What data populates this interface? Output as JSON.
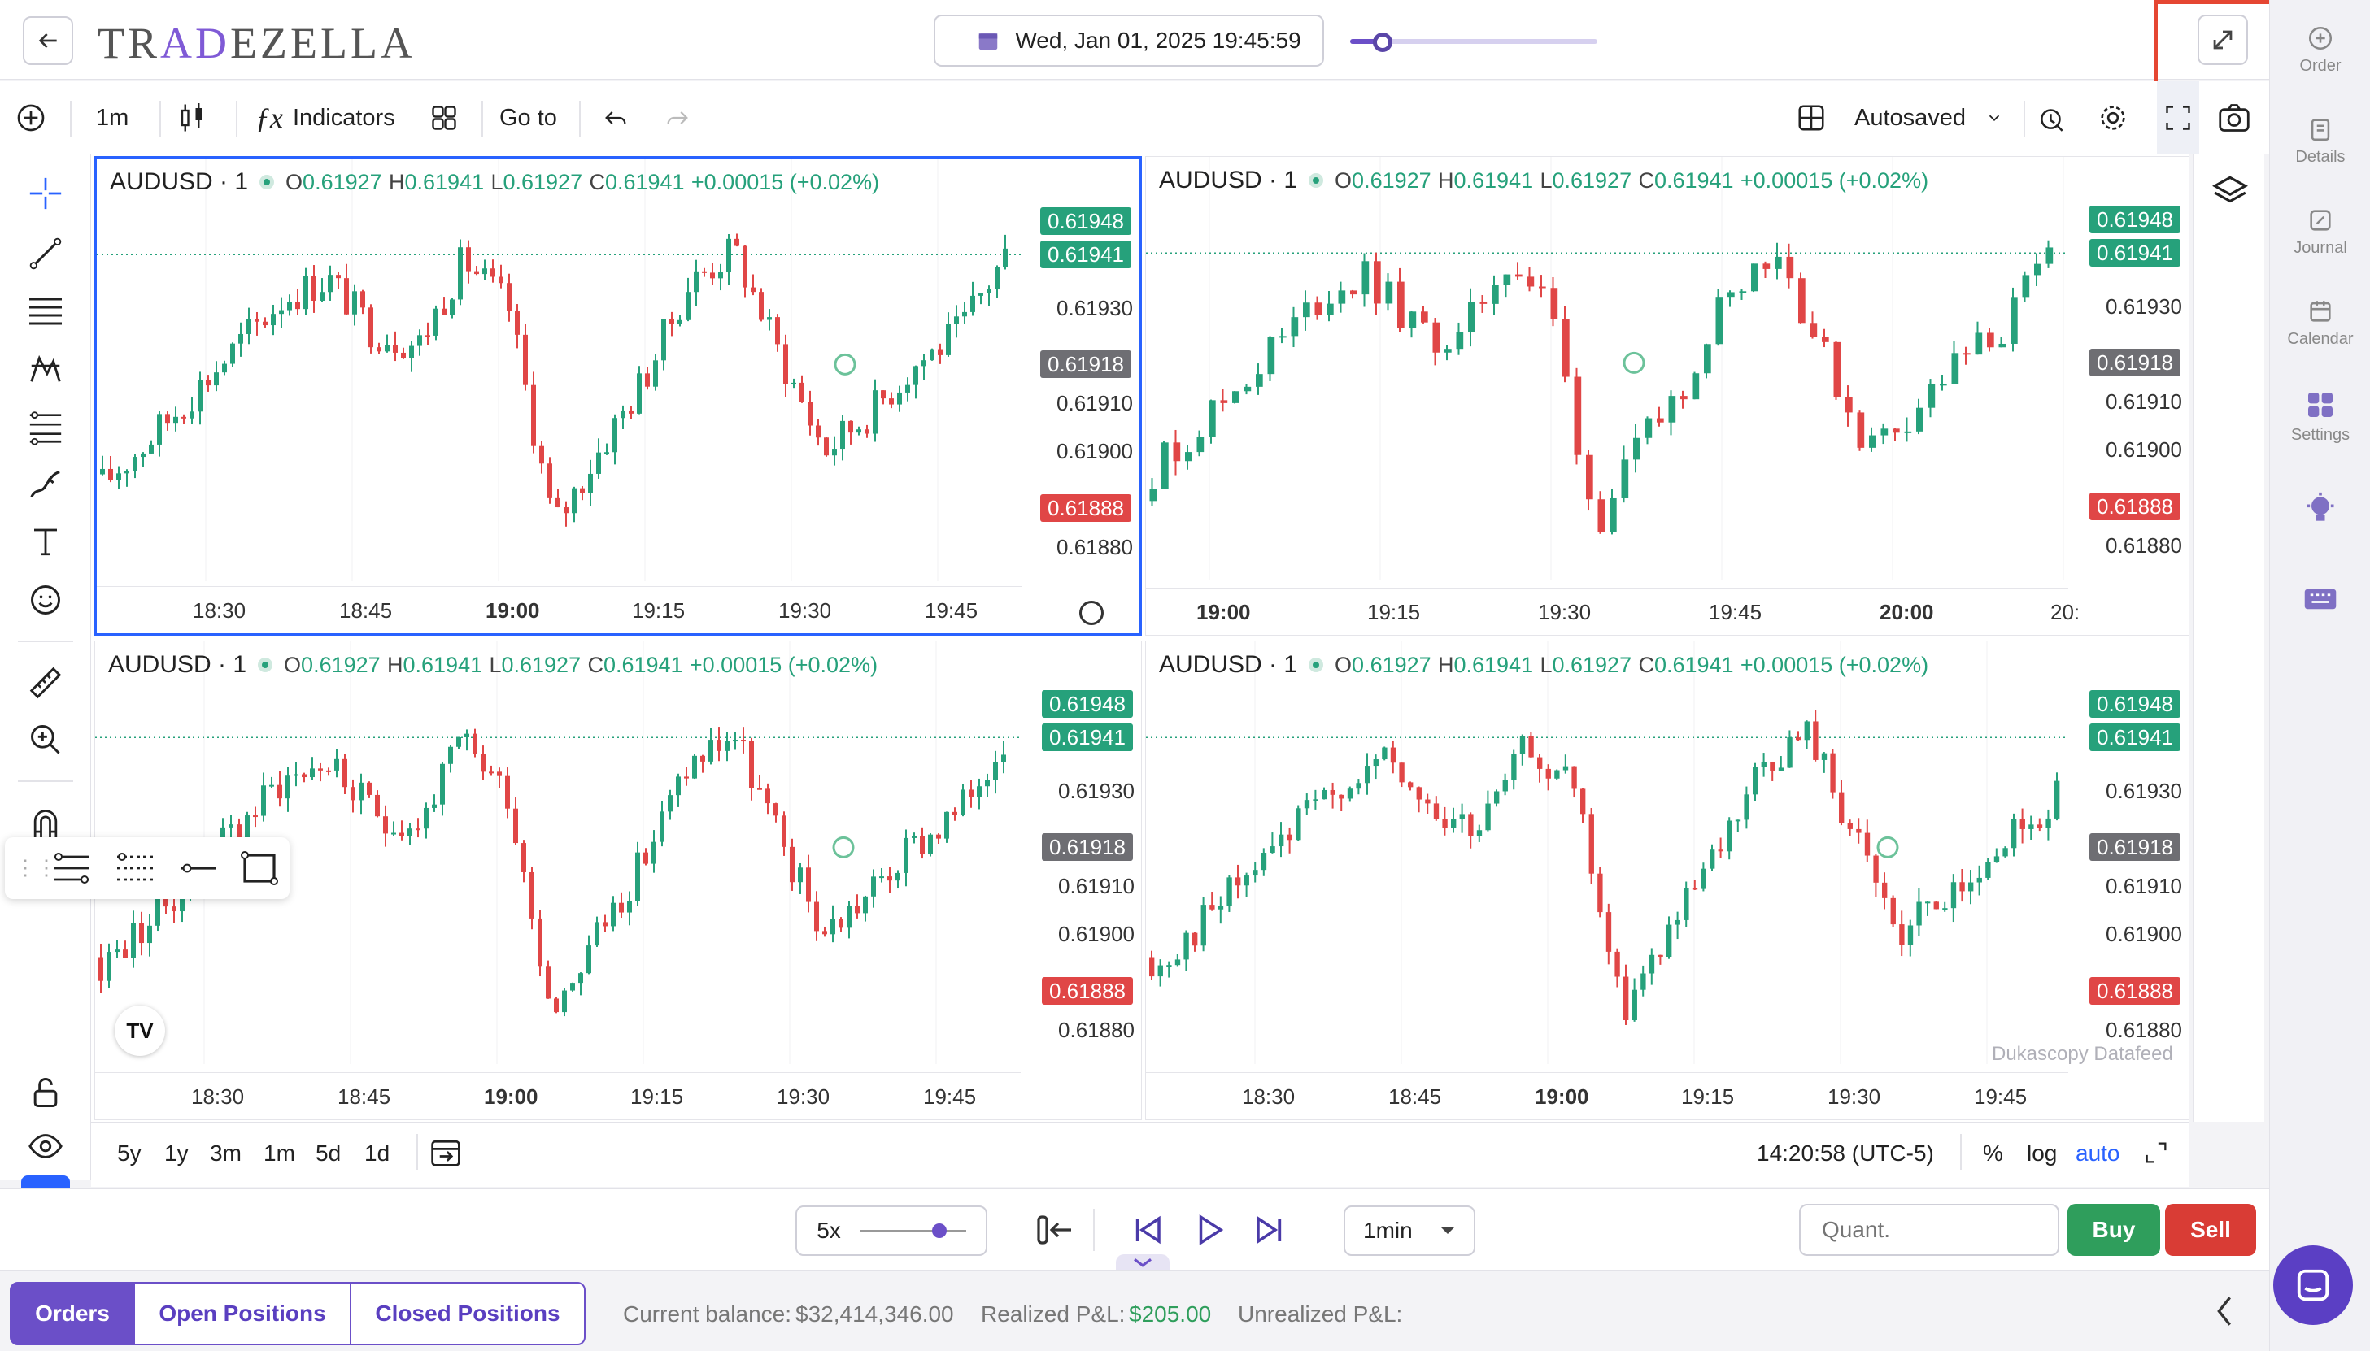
{
  "app": {
    "logo_text": "TRADEZELLA"
  },
  "header": {
    "datetime": "Wed, Jan 01, 2025 19:45:59",
    "expand_icon": "expand-arrows-icon"
  },
  "right_nav": [
    {
      "label": "Order",
      "icon": "plus-circle-icon"
    },
    {
      "label": "Details",
      "icon": "clipboard-icon"
    },
    {
      "label": "Journal",
      "icon": "edit-icon"
    },
    {
      "label": "Calendar",
      "icon": "calendar-icon"
    },
    {
      "label": "Settings",
      "icon": "grid-icon"
    }
  ],
  "toolbar": {
    "interval": "1m",
    "indicators": "Indicators",
    "goto": "Go to",
    "autosaved": "Autosaved"
  },
  "panes": [
    {
      "title": "AUDUSD · 1",
      "o": "0.61927",
      "h": "0.61941",
      "l": "0.61927",
      "c": "0.61941",
      "chg": "+0.00015 (+0.02%)",
      "xticks": [
        {
          "t": "18:30",
          "b": false
        },
        {
          "t": "18:45",
          "b": false
        },
        {
          "t": "19:00",
          "b": true
        },
        {
          "t": "19:15",
          "b": false
        },
        {
          "t": "19:30",
          "b": false
        },
        {
          "t": "19:45",
          "b": false
        }
      ]
    },
    {
      "title": "AUDUSD · 1",
      "o": "0.61927",
      "h": "0.61941",
      "l": "0.61927",
      "c": "0.61941",
      "chg": "+0.00015 (+0.02%)",
      "xticks": [
        {
          "t": "19:00",
          "b": true
        },
        {
          "t": "19:15",
          "b": false
        },
        {
          "t": "19:30",
          "b": false
        },
        {
          "t": "19:45",
          "b": false
        },
        {
          "t": "20:00",
          "b": true
        },
        {
          "t": "20:",
          "b": false
        }
      ]
    },
    {
      "title": "AUDUSD · 1",
      "o": "0.61927",
      "h": "0.61941",
      "l": "0.61927",
      "c": "0.61941",
      "chg": "+0.00015 (+0.02%)",
      "xticks": [
        {
          "t": "18:30",
          "b": false
        },
        {
          "t": "18:45",
          "b": false
        },
        {
          "t": "19:00",
          "b": true
        },
        {
          "t": "19:15",
          "b": false
        },
        {
          "t": "19:30",
          "b": false
        },
        {
          "t": "19:45",
          "b": false
        }
      ]
    },
    {
      "title": "AUDUSD · 1",
      "o": "0.61927",
      "h": "0.61941",
      "l": "0.61927",
      "c": "0.61941",
      "chg": "+0.00015 (+0.02%)",
      "xticks": [
        {
          "t": "18:30",
          "b": false
        },
        {
          "t": "18:45",
          "b": false
        },
        {
          "t": "19:00",
          "b": true
        },
        {
          "t": "19:15",
          "b": false
        },
        {
          "t": "19:30",
          "b": false
        },
        {
          "t": "19:45",
          "b": false
        }
      ]
    }
  ],
  "price_axis": {
    "labels": [
      "0.61930",
      "0.61910",
      "0.61900",
      "0.61880"
    ],
    "tag_top": "0.61948",
    "tag_last": "0.61941",
    "tag_mid": "0.61918",
    "tag_low": "0.61888"
  },
  "datafeed": "Dukascopy Datafeed",
  "timeframes": [
    "5y",
    "1y",
    "3m",
    "1m",
    "5d",
    "1d"
  ],
  "bottom_right": {
    "clock": "14:20:58 (UTC-5)",
    "percent": "%",
    "log": "log",
    "auto": "auto"
  },
  "replay": {
    "speed": "5x",
    "interval": "1min",
    "qty_placeholder": "Quant.",
    "buy": "Buy",
    "sell": "Sell"
  },
  "footer": {
    "tabs": [
      "Orders",
      "Open Positions",
      "Closed Positions"
    ],
    "balance_label": "Current balance:",
    "balance": "$32,414,346.00",
    "realized_label": "Realized P&L:",
    "realized": "$205.00",
    "unrealized_label": "Unrealized P&L:"
  },
  "colors": {
    "up": "#26a17b",
    "down": "#e04646",
    "accent": "#6b4fc8",
    "select": "#2962ff"
  }
}
